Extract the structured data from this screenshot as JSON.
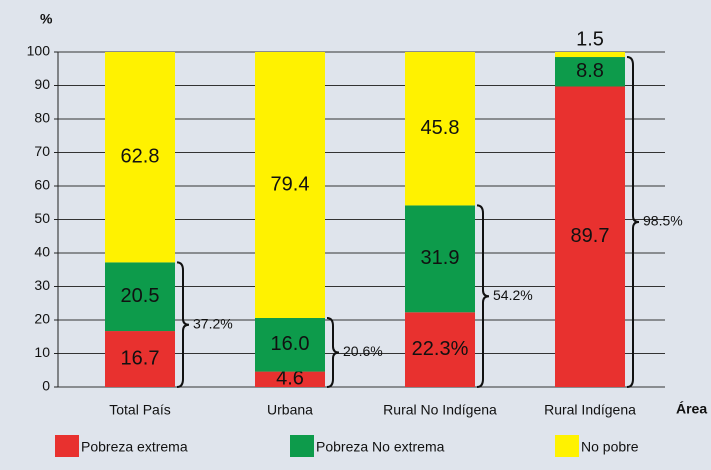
{
  "chart_data": {
    "type": "stacked_bar",
    "y_axis_label": "%",
    "x_axis_label": "Área",
    "categories": [
      "Total País",
      "Urbana",
      "Rural No Indígena",
      "Rural Indígena"
    ],
    "series": [
      {
        "name": "Pobreza extrema",
        "color": "#e8312f",
        "values": [
          16.7,
          4.6,
          22.3,
          89.7
        ],
        "value_labels": [
          "16.7",
          "4.6",
          "22.3%",
          "89.7"
        ]
      },
      {
        "name": "Pobreza No extrema",
        "color": "#0d9b4b",
        "values": [
          20.5,
          16.0,
          31.9,
          8.8
        ],
        "value_labels": [
          "20.5",
          "16.0",
          "31.9",
          "8.8"
        ]
      },
      {
        "name": "No pobre",
        "color": "#fff200",
        "values": [
          62.8,
          79.4,
          45.8,
          1.5
        ],
        "value_labels": [
          "62.8",
          "79.4",
          "45.8",
          "1.5"
        ]
      }
    ],
    "annotations": [
      "37.2%",
      "20.6%",
      "54.2%",
      "98.5%"
    ],
    "ylim": [
      0,
      100
    ],
    "yticks": [
      0,
      10,
      20,
      30,
      40,
      50,
      60,
      70,
      80,
      90,
      100
    ],
    "grid": true
  }
}
